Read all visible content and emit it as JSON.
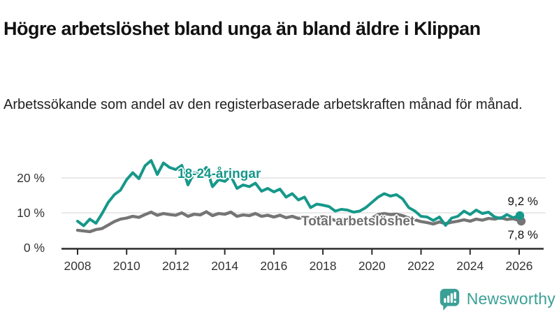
{
  "header": {
    "title": "Högre arbetslöshet bland unga än bland äldre i Klippan",
    "subtitle": "Arbetssökande som andel av den registerbaserade arbetskraften månad för månad."
  },
  "chart_data": {
    "type": "line",
    "title": "Högre arbetslöshet bland unga än bland äldre i Klippan",
    "xlabel": "",
    "ylabel": "",
    "x_axis": {
      "tick_years": [
        2008,
        2010,
        2012,
        2014,
        2016,
        2018,
        2020,
        2022,
        2024,
        2026
      ],
      "start": 2008,
      "end": 2026.1
    },
    "y_axis": {
      "tick_values": [
        0,
        10,
        20
      ],
      "tick_labels": [
        "0 %",
        "10 %",
        "20 %"
      ],
      "unit": "%",
      "ylim": [
        0,
        26
      ],
      "gridlines_at": [
        10,
        20
      ]
    },
    "sampling": {
      "x_start_year": 2008,
      "x_step_years": 0.25
    },
    "legend_position": "inline-labels",
    "grid": true,
    "series": [
      {
        "name": "18-24-åringar",
        "color": "#16988a",
        "end_value": 9.2,
        "end_label": "9,2 %",
        "values": [
          7.6,
          6.3,
          8.2,
          7.0,
          9.8,
          13.0,
          15.2,
          16.5,
          19.5,
          21.5,
          19.8,
          23.5,
          25.0,
          21.0,
          24.3,
          23.0,
          22.4,
          23.6,
          18.0,
          21.5,
          21.0,
          23.0,
          17.5,
          19.5,
          19.0,
          20.5,
          17.0,
          18.0,
          17.5,
          18.5,
          16.2,
          17.0,
          16.0,
          16.8,
          14.5,
          15.5,
          13.7,
          14.5,
          11.5,
          12.5,
          12.2,
          11.8,
          10.5,
          11.0,
          10.8,
          10.2,
          10.5,
          11.5,
          13.0,
          14.5,
          15.5,
          14.8,
          15.2,
          14.0,
          11.5,
          10.5,
          9.0,
          8.8,
          7.8,
          8.8,
          6.4,
          8.5,
          9.0,
          10.5,
          9.5,
          10.8,
          9.8,
          10.2,
          8.8,
          8.4,
          9.5,
          8.6,
          9.2
        ]
      },
      {
        "name": "Total arbetslöshet",
        "color": "#757575",
        "end_value": 7.8,
        "end_label": "7,8 %",
        "values": [
          5.0,
          4.8,
          4.6,
          5.2,
          5.5,
          6.5,
          7.5,
          8.2,
          8.5,
          9.0,
          8.7,
          9.5,
          10.2,
          9.3,
          9.8,
          9.5,
          9.3,
          10.0,
          9.0,
          9.6,
          9.4,
          10.3,
          9.2,
          9.8,
          9.6,
          10.2,
          9.0,
          9.4,
          9.2,
          9.8,
          9.0,
          9.3,
          8.8,
          9.3,
          8.6,
          9.0,
          8.4,
          8.8,
          8.2,
          8.6,
          8.9,
          8.5,
          7.8,
          8.2,
          7.8,
          7.4,
          7.2,
          7.6,
          8.5,
          9.5,
          9.8,
          9.5,
          9.6,
          9.2,
          8.5,
          8.0,
          7.5,
          7.2,
          6.8,
          7.4,
          6.9,
          7.3,
          7.6,
          8.0,
          7.6,
          8.2,
          7.9,
          8.4,
          8.2,
          8.6,
          8.1,
          8.3,
          7.8
        ]
      }
    ],
    "colors": {
      "grid": "#e2e2e2",
      "axis": "#2b2b2b",
      "tick_text": "#333333"
    }
  },
  "footer": {
    "brand": "Newsworthy",
    "brand_color": "#3aa096",
    "logo_icon": "bar-chart-speech-bubble"
  }
}
